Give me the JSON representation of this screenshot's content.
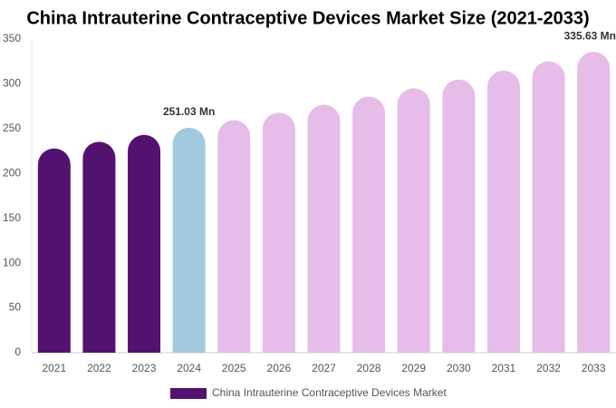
{
  "chart_data": {
    "type": "bar",
    "title": "China Intrauterine Contraceptive Devices Market Size (2021-2033)",
    "categories": [
      "2021",
      "2022",
      "2023",
      "2024",
      "2025",
      "2026",
      "2027",
      "2028",
      "2029",
      "2030",
      "2031",
      "2032",
      "2033"
    ],
    "series": [
      {
        "name": "China Intrauterine Contraceptive Devices Market",
        "color": "#541270",
        "values": [
          227.9,
          235.3,
          243.0,
          251.03,
          259.3,
          267.8,
          276.6,
          285.6,
          295.0,
          304.7,
          314.7,
          325.0,
          335.63
        ],
        "value_labels": [
          null,
          null,
          null,
          "251.03 Mn",
          null,
          null,
          null,
          null,
          null,
          null,
          null,
          null,
          "335.63 Mn"
        ],
        "colors": [
          "#541270",
          "#541270",
          "#541270",
          "#a3c9de",
          "#e6bce8",
          "#e6bce8",
          "#e6bce8",
          "#e6bce8",
          "#e6bce8",
          "#e6bce8",
          "#e6bce8",
          "#e6bce8",
          "#e6bce8"
        ]
      }
    ],
    "ylim": [
      0,
      350
    ],
    "yticks": [
      0,
      50,
      100,
      150,
      200,
      250,
      300,
      350
    ],
    "grid": false,
    "legend": "bottom"
  }
}
